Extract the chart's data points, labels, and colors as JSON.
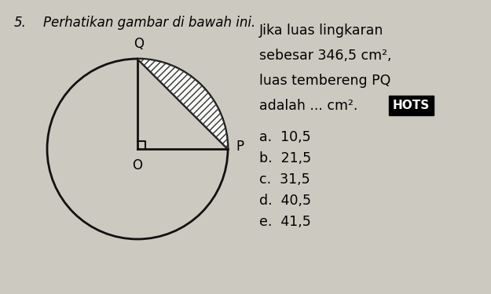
{
  "question_number": "5.",
  "question_text": "Perhatikan gambar di bawah ini.",
  "problem_text_line1": "Jika luas lingkaran",
  "problem_text_line2": "sebesar 346,5 cm²,",
  "problem_text_line3": "luas tembereng PQ",
  "problem_text_line4": "adalah ... cm².",
  "hots_label": "HOTS",
  "options": [
    "a.  10,5",
    "b.  21,5",
    "c.  31,5",
    "d.  40,5",
    "e.  41,5"
  ],
  "bg_color": "#cccac0",
  "circle_color": "#111111",
  "hatch_color": "#333333",
  "center_label": "O",
  "point_p_label": "P",
  "point_q_label": "Q"
}
